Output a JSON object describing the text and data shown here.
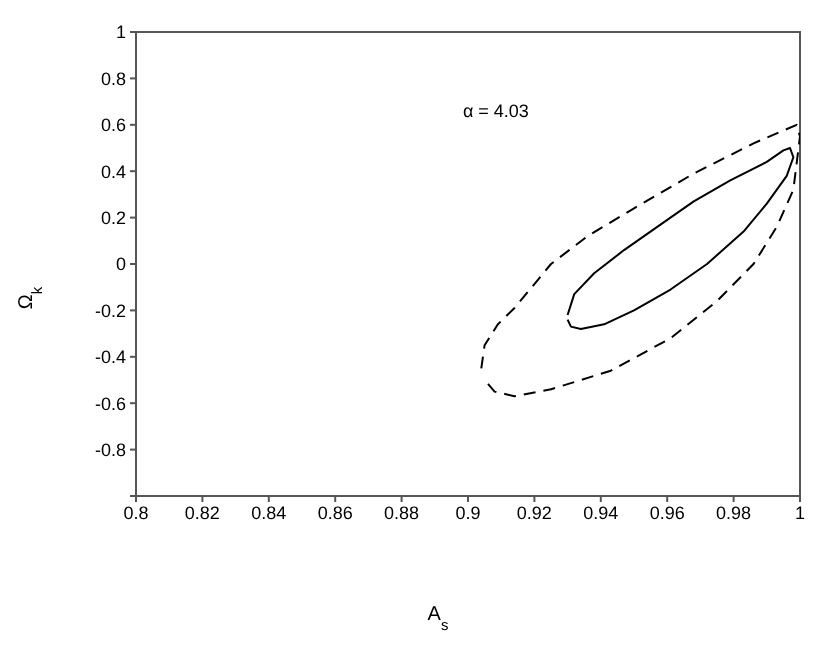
{
  "chart_data": {
    "type": "line",
    "xlabel": "A$_{s}$",
    "ylabel": "Ω$_{k}$",
    "annotations": [
      "α = 4.03"
    ],
    "xlim": [
      0.8,
      1
    ],
    "xticks": [
      0.8,
      0.82,
      0.84,
      0.86,
      0.88,
      0.9,
      0.92,
      0.94,
      0.96,
      0.98,
      1
    ],
    "ylim": [
      -1,
      1
    ],
    "yticks": [
      {
        "value": -1,
        "label": null
      },
      -0.8,
      -0.6,
      -0.4,
      -0.2,
      0,
      0.2,
      0.4,
      0.6,
      0.8,
      1
    ],
    "grid": false,
    "legend": false,
    "marker": "none",
    "series": [
      {
        "color": "#000000",
        "line_style": "solid",
        "x": [
          0.93,
          0.932,
          0.938,
          0.947,
          0.957,
          0.968,
          0.979,
          0.99,
          0.995,
          0.997,
          0.998,
          0.996,
          0.99,
          0.983,
          0.972,
          0.961,
          0.95,
          0.941,
          0.934,
          0.931,
          0.93
        ],
        "values": [
          -0.22,
          -0.13,
          -0.04,
          0.06,
          0.16,
          0.27,
          0.36,
          0.44,
          0.49,
          0.5,
          0.46,
          0.38,
          0.26,
          0.14,
          0,
          -0.11,
          -0.2,
          -0.26,
          -0.28,
          -0.27,
          -0.24
        ]
      },
      {
        "color": "#000000",
        "line_style": "dashed",
        "x": [
          0.904,
          0.905,
          0.909,
          0.914,
          0.925,
          0.936,
          0.95,
          0.968,
          0.986,
          0.999,
          1,
          0.998,
          0.993,
          0.986,
          0.975,
          0.961,
          0.943,
          0.925,
          0.914,
          0.908,
          0.905
        ],
        "values": [
          -0.45,
          -0.35,
          -0.26,
          -0.19,
          0,
          0.12,
          0.24,
          0.39,
          0.52,
          0.6,
          0.55,
          0.32,
          0.16,
          0,
          -0.16,
          -0.32,
          -0.46,
          -0.54,
          -0.57,
          -0.55,
          -0.5
        ]
      }
    ]
  }
}
